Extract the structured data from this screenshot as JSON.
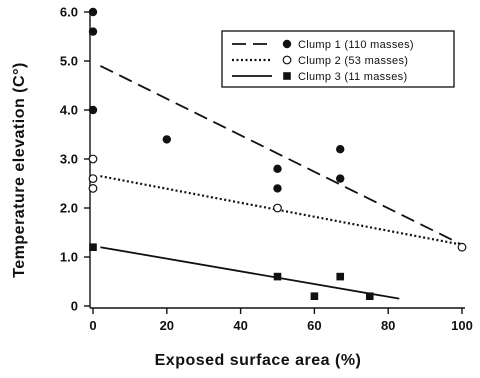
{
  "chart_data": {
    "type": "scatter",
    "xlabel": "Exposed surface area (%)",
    "ylabel": "Temperature elevation (C°)",
    "xlim": [
      0,
      100
    ],
    "ylim": [
      0,
      6
    ],
    "xticks": [
      "0",
      "20",
      "40",
      "60",
      "80",
      "100"
    ],
    "yticks": [
      "0",
      "1.0",
      "2.0",
      "3.0",
      "4.0",
      "5.0",
      "6.0"
    ],
    "grid": false,
    "legend_position": "top-right",
    "series": [
      {
        "name": "Clump 1 (110 masses)",
        "marker": "filled-circle",
        "line_style": "dashed",
        "points": [
          [
            0,
            6.0
          ],
          [
            0,
            5.6
          ],
          [
            0,
            4.0
          ],
          [
            20,
            3.4
          ],
          [
            50,
            2.8
          ],
          [
            50,
            2.4
          ],
          [
            67,
            3.2
          ],
          [
            67,
            2.6
          ]
        ],
        "fit": [
          [
            2,
            4.9
          ],
          [
            100,
            1.25
          ]
        ]
      },
      {
        "name": "Clump 2 (53 masses)",
        "marker": "open-circle",
        "line_style": "dotted",
        "points": [
          [
            0,
            3.0
          ],
          [
            0,
            2.6
          ],
          [
            0,
            2.4
          ],
          [
            50,
            2.0
          ],
          [
            100,
            1.2
          ]
        ],
        "fit": [
          [
            2,
            2.65
          ],
          [
            100,
            1.25
          ]
        ]
      },
      {
        "name": "Clump 3 (11 masses)",
        "marker": "filled-square",
        "line_style": "solid",
        "points": [
          [
            0,
            1.2
          ],
          [
            50,
            0.6
          ],
          [
            60,
            0.2
          ],
          [
            67,
            0.6
          ],
          [
            75,
            0.2
          ]
        ],
        "fit": [
          [
            2,
            1.2
          ],
          [
            83,
            0.15
          ]
        ]
      }
    ]
  }
}
